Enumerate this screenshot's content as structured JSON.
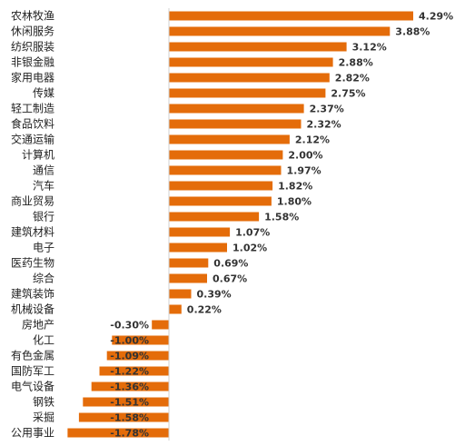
{
  "chart_data": {
    "type": "bar",
    "orientation": "horizontal",
    "title": "",
    "xlabel": "",
    "ylabel": "",
    "bar_color": "#E46C0A",
    "value_unit": "%",
    "xlim": [
      -1.78,
      4.29
    ],
    "categories": [
      "农林牧渔",
      "休闲服务",
      "纺织服装",
      "非银金融",
      "家用电器",
      "传媒",
      "轻工制造",
      "食品饮料",
      "交通运输",
      "计算机",
      "通信",
      "汽车",
      "商业贸易",
      "银行",
      "建筑材料",
      "电子",
      "医药生物",
      "综合",
      "建筑装饰",
      "机械设备",
      "房地产",
      "化工",
      "有色金属",
      "国防军工",
      "电气设备",
      "钢铁",
      "采掘",
      "公用事业"
    ],
    "values": [
      4.29,
      3.88,
      3.12,
      2.88,
      2.82,
      2.75,
      2.37,
      2.32,
      2.12,
      2.0,
      1.97,
      1.82,
      1.8,
      1.58,
      1.07,
      1.02,
      0.69,
      0.67,
      0.39,
      0.22,
      -0.3,
      -1.0,
      -1.09,
      -1.22,
      -1.36,
      -1.51,
      -1.58,
      -1.78
    ],
    "labels": [
      "4.29%",
      "3.88%",
      "3.12%",
      "2.88%",
      "2.82%",
      "2.75%",
      "2.37%",
      "2.32%",
      "2.12%",
      "2.00%",
      "1.97%",
      "1.82%",
      "1.80%",
      "1.58%",
      "1.07%",
      "1.02%",
      "0.69%",
      "0.67%",
      "0.39%",
      "0.22%",
      "-0.30%",
      "-1.00%",
      "-1.09%",
      "-1.22%",
      "-1.36%",
      "-1.51%",
      "-1.58%",
      "-1.78%"
    ]
  }
}
